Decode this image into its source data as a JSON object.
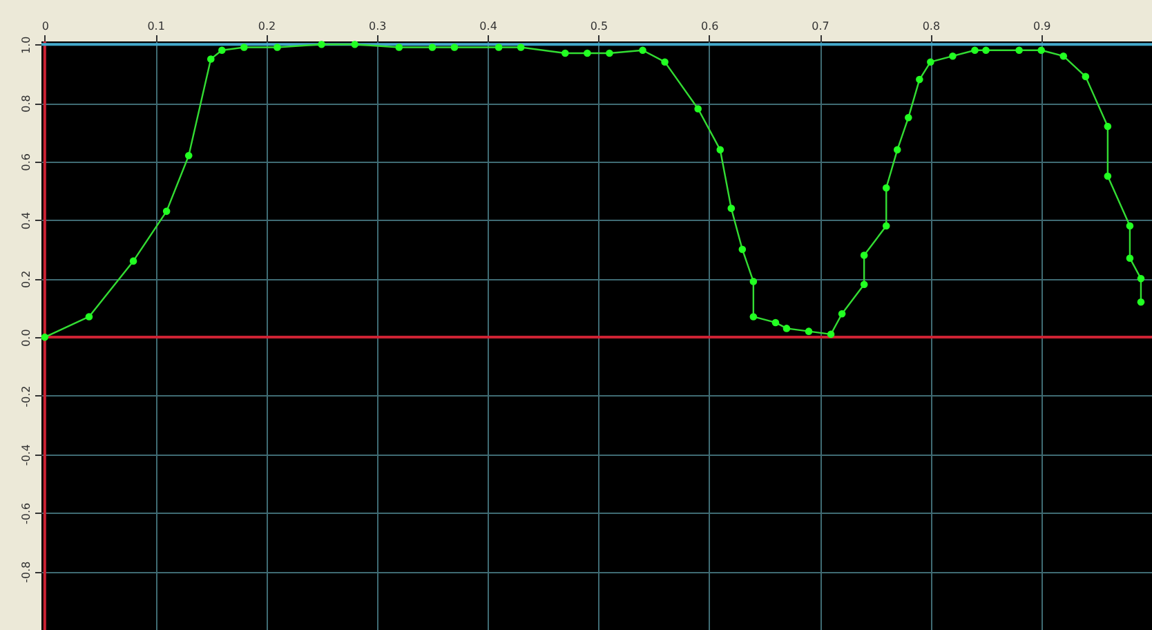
{
  "chart_data": {
    "type": "line",
    "x": [
      0,
      0.04,
      0.08,
      0.11,
      0.13,
      0.15,
      0.16,
      0.18,
      0.21,
      0.25,
      0.28,
      0.32,
      0.35,
      0.37,
      0.41,
      0.43,
      0.47,
      0.49,
      0.51,
      0.54,
      0.56,
      0.59,
      0.61,
      0.62,
      0.63,
      0.64,
      0.64,
      0.66,
      0.67,
      0.69,
      0.71,
      0.72,
      0.74,
      0.74,
      0.76,
      0.76,
      0.77,
      0.78,
      0.79,
      0.8,
      0.82,
      0.84,
      0.85,
      0.88,
      0.9,
      0.92,
      0.94,
      0.96,
      0.96,
      0.98,
      0.98,
      0.99,
      0.99
    ],
    "series": [
      {
        "color": "#33dd33",
        "values": [
          0,
          0.07,
          0.26,
          0.43,
          0.62,
          0.95,
          0.98,
          0.99,
          0.99,
          1.0,
          1.0,
          0.99,
          0.99,
          0.99,
          0.99,
          0.99,
          0.97,
          0.97,
          0.97,
          0.98,
          0.94,
          0.78,
          0.64,
          0.44,
          0.3,
          0.19,
          0.07,
          0.05,
          0.03,
          0.02,
          0.01,
          0.08,
          0.18,
          0.28,
          0.38,
          0.51,
          0.64,
          0.75,
          0.88,
          0.94,
          0.96,
          0.98,
          0.98,
          0.98,
          0.98,
          0.96,
          0.89,
          0.72,
          0.55,
          0.38,
          0.27,
          0.2,
          0.12
        ]
      }
    ],
    "xlim": [
      -0.003,
      1.0
    ],
    "xticks": [
      {
        "value": 0,
        "label": "0"
      },
      0.1,
      0.2,
      0.3,
      0.4,
      0.5,
      0.6,
      0.7,
      0.8,
      0.9
    ],
    "ylim": [
      -1.0,
      1.01
    ],
    "yticks": [
      -0.8,
      -0.6,
      -0.4,
      -0.2,
      {
        "value": 0,
        "label": "0.0"
      },
      0.2,
      0.4,
      0.6,
      0.8,
      {
        "value": 1,
        "label": "1.0"
      }
    ],
    "ref_lines": [
      {
        "axis": "y",
        "value": 0,
        "color": "#cc2233"
      },
      {
        "axis": "x",
        "value": 0,
        "color": "#cc2233"
      },
      {
        "axis": "y",
        "value": 1,
        "color": "#44aacc"
      }
    ],
    "grid": true,
    "marker": "circle",
    "line_style": "solid"
  }
}
